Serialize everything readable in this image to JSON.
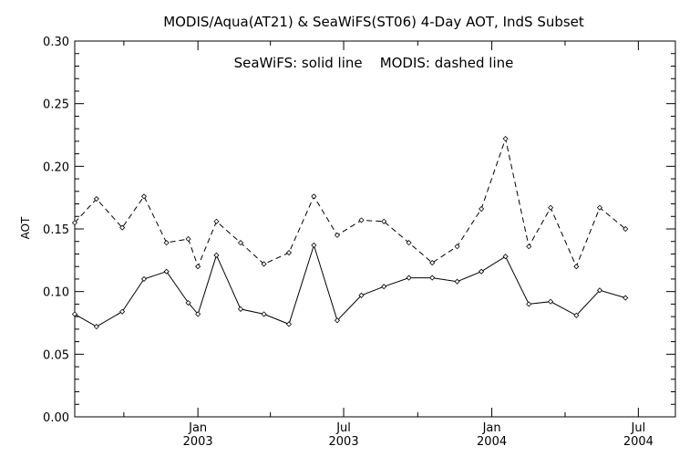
{
  "chart_data": {
    "type": "line",
    "title": "MODIS/Aqua(AT21) & SeaWiFS(ST06) 4-Day AOT, IndS Subset",
    "annotation": "SeaWiFS: solid line    MODIS: dashed line",
    "ylabel": "AOT",
    "xlabel": "",
    "ylim": [
      0.0,
      0.3
    ],
    "y_ticks": [
      "0.00",
      "0.05",
      "0.10",
      "0.15",
      "0.20",
      "0.25",
      "0.30"
    ],
    "x_range": [
      "2002-08-01",
      "2004-08-16"
    ],
    "x_ticks": [
      {
        "date": "2003-01-01",
        "month": "Jan",
        "year": "2003"
      },
      {
        "date": "2003-07-01",
        "month": "Jul",
        "year": "2003"
      },
      {
        "date": "2004-01-01",
        "month": "Jan",
        "year": "2004"
      },
      {
        "date": "2004-07-01",
        "month": "Jul",
        "year": "2004"
      }
    ],
    "grid": false,
    "legend": "annotation-top-center",
    "series": [
      {
        "style": "solid",
        "color": "#000000",
        "points": [
          {
            "x": "2002-08-01",
            "y": 0.082
          },
          {
            "x": "2002-08-28",
            "y": 0.072
          },
          {
            "x": "2002-09-29",
            "y": 0.084
          },
          {
            "x": "2002-10-26",
            "y": 0.11
          },
          {
            "x": "2002-11-23",
            "y": 0.116
          },
          {
            "x": "2002-12-20",
            "y": 0.091
          },
          {
            "x": "2003-01-01",
            "y": 0.082
          },
          {
            "x": "2003-01-24",
            "y": 0.129
          },
          {
            "x": "2003-02-23",
            "y": 0.086
          },
          {
            "x": "2003-03-24",
            "y": 0.082
          },
          {
            "x": "2003-04-24",
            "y": 0.074
          },
          {
            "x": "2003-05-25",
            "y": 0.137
          },
          {
            "x": "2003-06-23",
            "y": 0.077
          },
          {
            "x": "2003-07-23",
            "y": 0.097
          },
          {
            "x": "2003-08-20",
            "y": 0.104
          },
          {
            "x": "2003-09-20",
            "y": 0.111
          },
          {
            "x": "2003-10-19",
            "y": 0.111
          },
          {
            "x": "2003-11-19",
            "y": 0.108
          },
          {
            "x": "2003-12-19",
            "y": 0.116
          },
          {
            "x": "2004-01-18",
            "y": 0.128
          },
          {
            "x": "2004-02-16",
            "y": 0.09
          },
          {
            "x": "2004-03-14",
            "y": 0.092
          },
          {
            "x": "2004-04-15",
            "y": 0.081
          },
          {
            "x": "2004-05-14",
            "y": 0.101
          },
          {
            "x": "2004-06-15",
            "y": 0.095
          }
        ]
      },
      {
        "style": "dashed",
        "color": "#000000",
        "points": [
          {
            "x": "2002-08-01",
            "y": 0.155
          },
          {
            "x": "2002-08-28",
            "y": 0.174
          },
          {
            "x": "2002-09-29",
            "y": 0.151
          },
          {
            "x": "2002-10-26",
            "y": 0.176
          },
          {
            "x": "2002-11-23",
            "y": 0.139
          },
          {
            "x": "2002-12-20",
            "y": 0.142
          },
          {
            "x": "2003-01-01",
            "y": 0.12
          },
          {
            "x": "2003-01-24",
            "y": 0.156
          },
          {
            "x": "2003-02-23",
            "y": 0.139
          },
          {
            "x": "2003-03-24",
            "y": 0.122
          },
          {
            "x": "2003-04-24",
            "y": 0.131
          },
          {
            "x": "2003-05-25",
            "y": 0.176
          },
          {
            "x": "2003-06-23",
            "y": 0.145
          },
          {
            "x": "2003-07-23",
            "y": 0.157
          },
          {
            "x": "2003-08-20",
            "y": 0.156
          },
          {
            "x": "2003-09-20",
            "y": 0.139
          },
          {
            "x": "2003-10-19",
            "y": 0.123
          },
          {
            "x": "2003-11-19",
            "y": 0.136
          },
          {
            "x": "2003-12-19",
            "y": 0.166
          },
          {
            "x": "2004-01-18",
            "y": 0.222
          },
          {
            "x": "2004-02-16",
            "y": 0.136
          },
          {
            "x": "2004-03-14",
            "y": 0.167
          },
          {
            "x": "2004-04-15",
            "y": 0.12
          },
          {
            "x": "2004-05-14",
            "y": 0.167
          },
          {
            "x": "2004-06-15",
            "y": 0.15
          }
        ]
      }
    ]
  }
}
